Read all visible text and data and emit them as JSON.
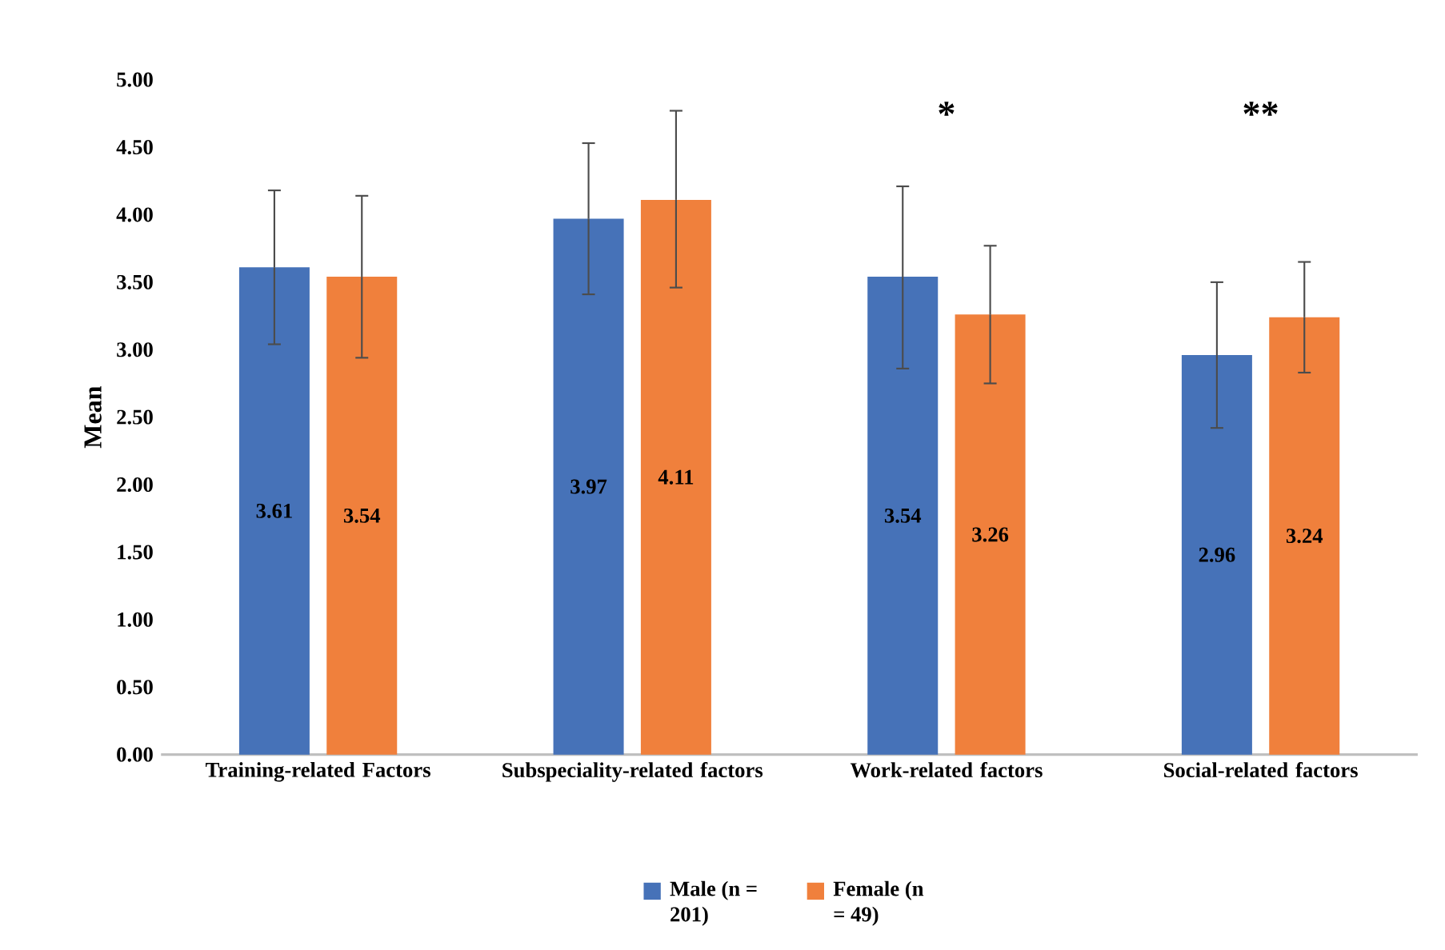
{
  "chart_data": {
    "type": "bar",
    "ylabel": "Mean",
    "categories": [
      "Training-related Factors",
      "Subspeciality-related factors",
      "Work-related factors",
      "Social-related factors"
    ],
    "series": [
      {
        "name": "Male (n = 201)",
        "color": "#4672b8",
        "values": [
          3.61,
          3.97,
          3.54,
          2.96
        ],
        "errors": [
          [
            3.04,
            4.18
          ],
          [
            3.41,
            4.53
          ],
          [
            2.86,
            4.21
          ],
          [
            2.42,
            3.5
          ]
        ]
      },
      {
        "name": "Female (n = 49)",
        "color": "#f0803c",
        "values": [
          3.54,
          4.11,
          3.26,
          3.24
        ],
        "errors": [
          [
            2.94,
            4.14
          ],
          [
            3.46,
            4.77
          ],
          [
            2.75,
            3.77
          ],
          [
            2.83,
            3.65
          ]
        ]
      }
    ],
    "ylim": [
      0,
      5
    ],
    "yticks": [
      {
        "value": 0,
        "label": "0.00"
      },
      {
        "value": 0.5,
        "label": "0.50"
      },
      {
        "value": 1,
        "label": "1.00"
      },
      {
        "value": 1.5,
        "label": "1.50"
      },
      {
        "value": 2,
        "label": "2.00"
      },
      {
        "value": 2.5,
        "label": "2.50"
      },
      {
        "value": 3,
        "label": "3.00"
      },
      {
        "value": 3.5,
        "label": "3.50"
      },
      {
        "value": 4,
        "label": "4.00"
      },
      {
        "value": 4.5,
        "label": "4.50"
      },
      {
        "value": 5,
        "label": "5.00"
      }
    ],
    "annotations": [
      "*",
      "**"
    ],
    "data_labels": true,
    "legend": "bottom",
    "grid": false
  }
}
